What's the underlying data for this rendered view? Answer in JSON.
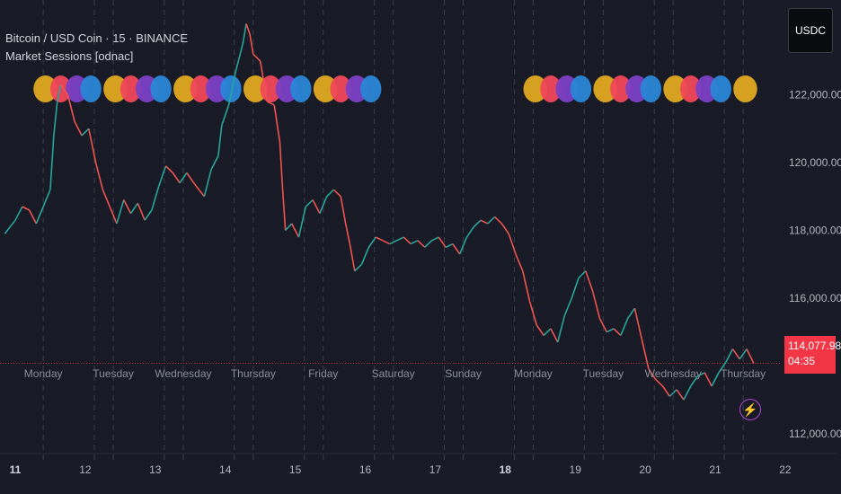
{
  "symbol_title": "Bitcoin / USD Coin · 15 · BINANCE",
  "indicator_title": "Market Sessions [odnac]",
  "currency_button": "USDC",
  "current_price": {
    "label": "114,077.98",
    "value": 114077.98,
    "countdown": "04:35",
    "color": "#f23645"
  },
  "bolt_icon": "lightning-icon",
  "session_colors": {
    "asia": "#e0a920",
    "london": "#f04858",
    "newyork": "#7b3fc4",
    "extra": "#2a86d6"
  },
  "chart_data": {
    "type": "line",
    "ylim": [
      111200,
      124800
    ],
    "y_ticks": [
      {
        "value": 122000,
        "label": "122,000.00"
      },
      {
        "value": 120000,
        "label": "120,000.00"
      },
      {
        "value": 118000,
        "label": "118,000.00"
      },
      {
        "value": 116000,
        "label": "116,000.00"
      },
      {
        "value": 112000,
        "label": "112,000.00"
      }
    ],
    "date_labels": [
      {
        "label": "11",
        "day": 11.0
      },
      {
        "label": "12",
        "day": 12.0
      },
      {
        "label": "13",
        "day": 13.0
      },
      {
        "label": "14",
        "day": 14.0
      },
      {
        "label": "15",
        "day": 15.0
      },
      {
        "label": "16",
        "day": 16.0
      },
      {
        "label": "17",
        "day": 17.0
      },
      {
        "label": "18",
        "day": 18.0
      },
      {
        "label": "19",
        "day": 19.0
      },
      {
        "label": "20",
        "day": 20.0
      },
      {
        "label": "21",
        "day": 21.0
      },
      {
        "label": "22",
        "day": 22.0
      }
    ],
    "weekday_labels": [
      {
        "label": "Monday",
        "day": 11.4
      },
      {
        "label": "Tuesday",
        "day": 12.4
      },
      {
        "label": "Wednesday",
        "day": 13.4
      },
      {
        "label": "Thursday",
        "day": 14.4
      },
      {
        "label": "Friday",
        "day": 15.4
      },
      {
        "label": "Saturday",
        "day": 16.4
      },
      {
        "label": "Sunday",
        "day": 17.4
      },
      {
        "label": "Monday",
        "day": 18.4
      },
      {
        "label": "Tuesday",
        "day": 19.4
      },
      {
        "label": "Wednesday",
        "day": 20.4
      },
      {
        "label": "Thursday",
        "day": 21.4
      }
    ],
    "session_days": [
      11.4,
      12.4,
      13.4,
      14.4,
      15.4,
      18.4,
      19.4,
      20.4,
      21.4
    ],
    "last_session_partial": true,
    "price_path": [
      [
        10.85,
        117900
      ],
      [
        11.0,
        118300
      ],
      [
        11.1,
        118700
      ],
      [
        11.2,
        118600
      ],
      [
        11.3,
        118200
      ],
      [
        11.4,
        118700
      ],
      [
        11.5,
        119200
      ],
      [
        11.55,
        120800
      ],
      [
        11.6,
        121800
      ],
      [
        11.65,
        122300
      ],
      [
        11.75,
        122000
      ],
      [
        11.85,
        121200
      ],
      [
        11.95,
        120800
      ],
      [
        12.05,
        121000
      ],
      [
        12.15,
        120000
      ],
      [
        12.25,
        119200
      ],
      [
        12.35,
        118700
      ],
      [
        12.45,
        118200
      ],
      [
        12.55,
        118900
      ],
      [
        12.65,
        118500
      ],
      [
        12.75,
        118800
      ],
      [
        12.85,
        118300
      ],
      [
        12.95,
        118600
      ],
      [
        13.05,
        119300
      ],
      [
        13.15,
        119900
      ],
      [
        13.25,
        119700
      ],
      [
        13.35,
        119400
      ],
      [
        13.45,
        119700
      ],
      [
        13.55,
        119400
      ],
      [
        13.7,
        119000
      ],
      [
        13.8,
        119800
      ],
      [
        13.9,
        120200
      ],
      [
        13.95,
        121100
      ],
      [
        14.05,
        121700
      ],
      [
        14.15,
        122700
      ],
      [
        14.25,
        123500
      ],
      [
        14.3,
        124100
      ],
      [
        14.35,
        123800
      ],
      [
        14.4,
        123200
      ],
      [
        14.5,
        123000
      ],
      [
        14.55,
        122400
      ],
      [
        14.6,
        121800
      ],
      [
        14.7,
        121700
      ],
      [
        14.78,
        120600
      ],
      [
        14.82,
        119200
      ],
      [
        14.86,
        118000
      ],
      [
        14.95,
        118200
      ],
      [
        15.05,
        117800
      ],
      [
        15.15,
        118700
      ],
      [
        15.25,
        118900
      ],
      [
        15.35,
        118500
      ],
      [
        15.45,
        119000
      ],
      [
        15.55,
        119200
      ],
      [
        15.65,
        119000
      ],
      [
        15.72,
        118200
      ],
      [
        15.78,
        117600
      ],
      [
        15.85,
        116800
      ],
      [
        15.95,
        117000
      ],
      [
        16.05,
        117500
      ],
      [
        16.15,
        117800
      ],
      [
        16.25,
        117700
      ],
      [
        16.35,
        117600
      ],
      [
        16.45,
        117700
      ],
      [
        16.55,
        117800
      ],
      [
        16.65,
        117600
      ],
      [
        16.75,
        117700
      ],
      [
        16.85,
        117500
      ],
      [
        16.95,
        117700
      ],
      [
        17.05,
        117800
      ],
      [
        17.15,
        117500
      ],
      [
        17.25,
        117600
      ],
      [
        17.35,
        117300
      ],
      [
        17.45,
        117800
      ],
      [
        17.55,
        118100
      ],
      [
        17.65,
        118300
      ],
      [
        17.75,
        118200
      ],
      [
        17.85,
        118400
      ],
      [
        17.95,
        118200
      ],
      [
        18.05,
        117900
      ],
      [
        18.15,
        117300
      ],
      [
        18.25,
        116800
      ],
      [
        18.35,
        115900
      ],
      [
        18.45,
        115200
      ],
      [
        18.55,
        114900
      ],
      [
        18.65,
        115100
      ],
      [
        18.75,
        114700
      ],
      [
        18.85,
        115500
      ],
      [
        18.95,
        116000
      ],
      [
        19.05,
        116600
      ],
      [
        19.15,
        116800
      ],
      [
        19.25,
        116200
      ],
      [
        19.35,
        115400
      ],
      [
        19.45,
        115000
      ],
      [
        19.55,
        115100
      ],
      [
        19.65,
        114900
      ],
      [
        19.75,
        115400
      ],
      [
        19.85,
        115700
      ],
      [
        19.95,
        114800
      ],
      [
        20.05,
        113900
      ],
      [
        20.15,
        113600
      ],
      [
        20.25,
        113400
      ],
      [
        20.35,
        113100
      ],
      [
        20.45,
        113300
      ],
      [
        20.55,
        113000
      ],
      [
        20.65,
        113400
      ],
      [
        20.75,
        113700
      ],
      [
        20.85,
        113800
      ],
      [
        20.95,
        113400
      ],
      [
        21.05,
        113800
      ],
      [
        21.15,
        114100
      ],
      [
        21.25,
        114500
      ],
      [
        21.35,
        114200
      ],
      [
        21.45,
        114500
      ],
      [
        21.55,
        114078
      ]
    ]
  }
}
